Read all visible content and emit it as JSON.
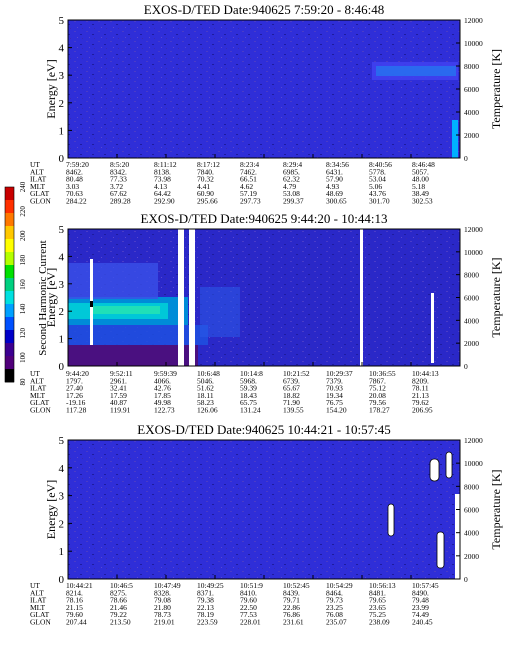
{
  "colorbar": {
    "label": "Second Harmonic Current",
    "ticks": [
      "240",
      "220",
      "200",
      "180",
      "160",
      "140",
      "120",
      "100",
      "80"
    ],
    "colors": [
      "#c80000",
      "#ff3000",
      "#ff7800",
      "#ffc800",
      "#ffff00",
      "#b4ff00",
      "#00e000",
      "#00d080",
      "#00e0e0",
      "#00a0ff",
      "#0050ff",
      "#0000c8",
      "#3c0090",
      "#50007a",
      "#000000"
    ]
  },
  "chart_data": [
    {
      "type": "heatmap",
      "title": "EXOS-D/TED   Date:940625  7:59:20 - 8:46:48",
      "ylabel": "Energy [eV]",
      "y2label": "Temperature [K]",
      "ylim": [
        0,
        5
      ],
      "y2lim": [
        0,
        12000
      ],
      "yticks": [
        "0",
        "1",
        "2",
        "3",
        "4",
        "5"
      ],
      "y2ticks": [
        "0",
        "2000",
        "4000",
        "6000",
        "8000",
        "10000",
        "12000"
      ],
      "row_labels": [
        "UT",
        "ALT",
        "ILAT",
        "MLT",
        "GLAT",
        "GLON"
      ],
      "columns": [
        [
          "7:59:20",
          "8462.",
          "80.48",
          "3.03",
          "70.63",
          "284.22"
        ],
        [
          "8:5:20",
          "8342.",
          "77.33",
          "3.72",
          "67.62",
          "289.28"
        ],
        [
          "8:11:12",
          "8138.",
          "73.98",
          "4.13",
          "64.42",
          "292.90"
        ],
        [
          "8:17:12",
          "7840.",
          "70.32",
          "4.41",
          "60.90",
          "295.66"
        ],
        [
          "8:23:4",
          "7462.",
          "66.51",
          "4.62",
          "57.19",
          "297.73"
        ],
        [
          "8:29:4",
          "6985.",
          "62.32",
          "4.79",
          "53.08",
          "299.37"
        ],
        [
          "8:34:56",
          "6431.",
          "57.90",
          "4.93",
          "48.69",
          "300.65"
        ],
        [
          "8:40:56",
          "5778.",
          "53.04",
          "5.06",
          "43.76",
          "301.70"
        ],
        [
          "8:46:48",
          "5057.",
          "48.00",
          "5.18",
          "38.49",
          "302.53"
        ]
      ]
    },
    {
      "type": "heatmap",
      "title": "EXOS-D/TED   Date:940625  9:44:20 - 10:44:13",
      "ylabel": "Energy [eV]",
      "y2label": "Temperature [K]",
      "ylim": [
        0,
        5
      ],
      "y2lim": [
        0,
        12000
      ],
      "yticks": [
        "0",
        "1",
        "2",
        "3",
        "4",
        "5"
      ],
      "y2ticks": [
        "0",
        "2000",
        "4000",
        "6000",
        "8000",
        "10000",
        "12000"
      ],
      "row_labels": [
        "UT",
        "ALT",
        "ILAT",
        "MLT",
        "GLAT",
        "GLON"
      ],
      "columns": [
        [
          "9:44:20",
          "1797.",
          "27.40",
          "17.26",
          "-19.16",
          "117.28"
        ],
        [
          "9:52:11",
          "2961.",
          "32.41",
          "17.59",
          "40.87",
          "119.91"
        ],
        [
          "9:59:39",
          "4066.",
          "42.76",
          "17.85",
          "49.98",
          "122.73"
        ],
        [
          "10:6:48",
          "5046.",
          "51.62",
          "18.11",
          "58.23",
          "126.06"
        ],
        [
          "10:14:8",
          "5968.",
          "59.39",
          "18.43",
          "65.75",
          "131.24"
        ],
        [
          "10:21:52",
          "6739.",
          "65.67",
          "18.82",
          "71.90",
          "139.55"
        ],
        [
          "10:29:37",
          "7379.",
          "70.93",
          "19.34",
          "76.75",
          "154.20"
        ],
        [
          "10:36:55",
          "7867.",
          "75.12",
          "20.08",
          "79.56",
          "178.27"
        ],
        [
          "10:44:13",
          "8209.",
          "78.11",
          "21.13",
          "79.62",
          "206.95"
        ]
      ]
    },
    {
      "type": "heatmap",
      "title": "EXOS-D/TED   Date:940625  10:44:21 - 10:57:45",
      "ylabel": "Energy [eV]",
      "y2label": "Temperature [K]",
      "ylim": [
        0,
        5
      ],
      "y2lim": [
        0,
        12000
      ],
      "yticks": [
        "0",
        "1",
        "2",
        "3",
        "4",
        "5"
      ],
      "y2ticks": [
        "0",
        "2000",
        "4000",
        "6000",
        "8000",
        "10000",
        "12000"
      ],
      "row_labels": [
        "UT",
        "ALT",
        "ILAT",
        "MLT",
        "GLAT",
        "GLON"
      ],
      "columns": [
        [
          "10:44:21",
          "8214.",
          "78.16",
          "21.15",
          "79.60",
          "207.44"
        ],
        [
          "10:46:5",
          "8275.",
          "78.66",
          "21.46",
          "79.22",
          "213.50"
        ],
        [
          "10:47:49",
          "8328.",
          "79.08",
          "21.80",
          "78.73",
          "219.01"
        ],
        [
          "10:49:25",
          "8371.",
          "79.38",
          "22.13",
          "78.19",
          "223.59"
        ],
        [
          "10:51:9",
          "8410.",
          "79.60",
          "22.50",
          "77.53",
          "228.01"
        ],
        [
          "10:52:45",
          "8439.",
          "79.71",
          "22.86",
          "76.86",
          "231.61"
        ],
        [
          "10:54:29",
          "8464.",
          "79.73",
          "23.25",
          "76.08",
          "235.07"
        ],
        [
          "10:56:13",
          "8481.",
          "79.65",
          "23.65",
          "75.25",
          "238.09"
        ],
        [
          "10:57:45",
          "8490.",
          "79.48",
          "23.99",
          "74.49",
          "240.45"
        ]
      ]
    }
  ]
}
